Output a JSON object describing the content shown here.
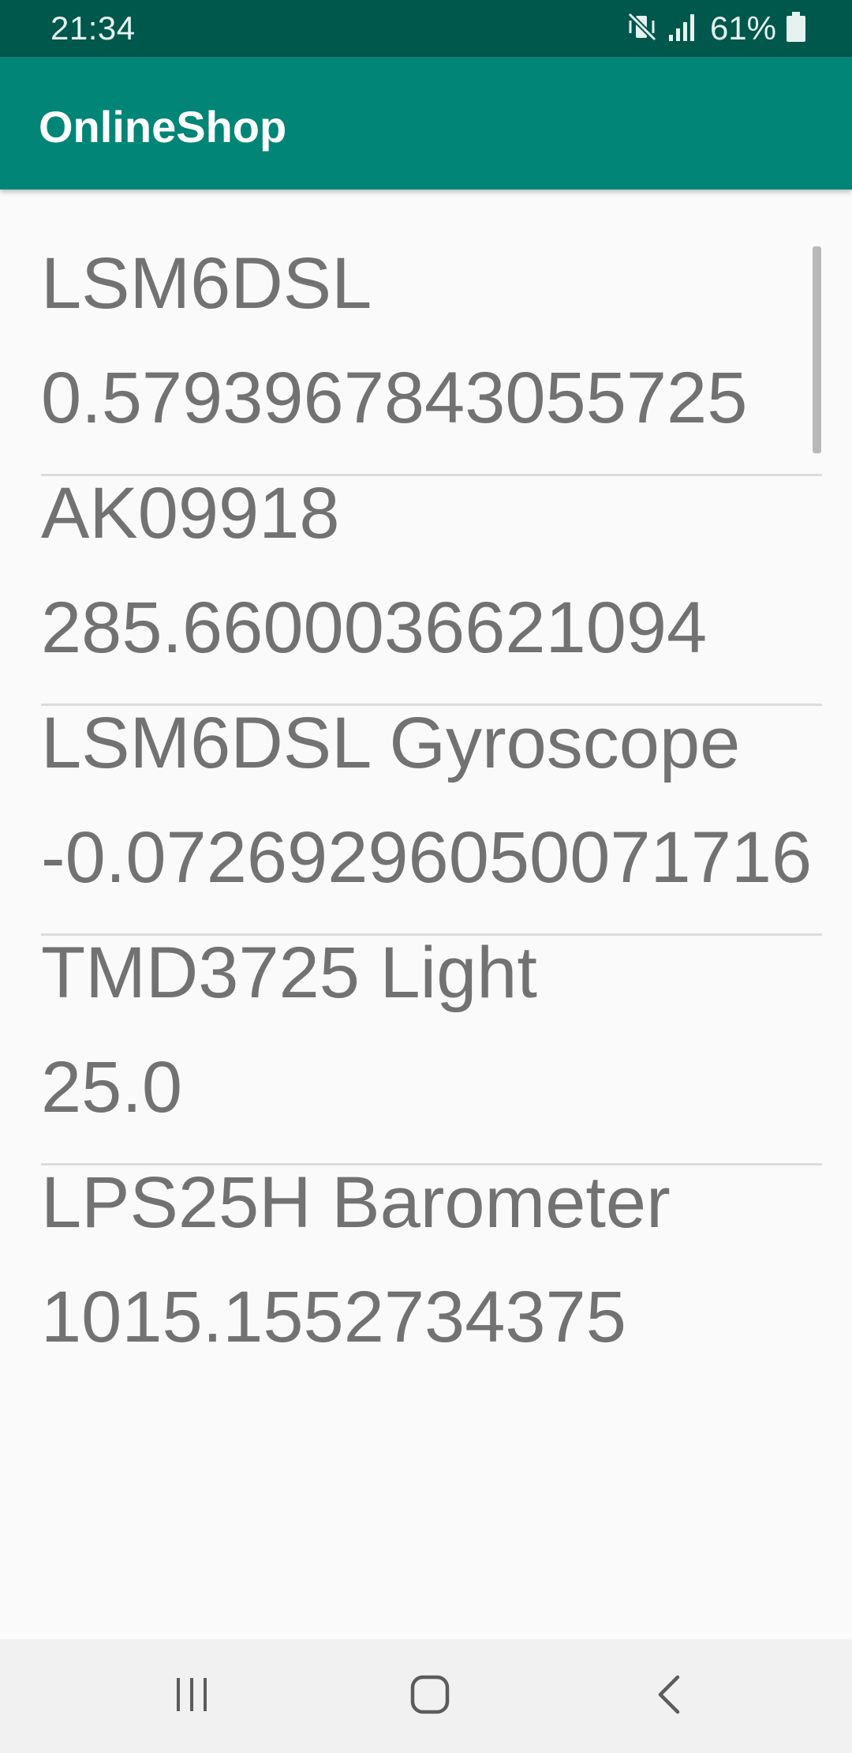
{
  "status_bar": {
    "time": "21:34",
    "battery_percent": "61%",
    "icons": [
      "mute-vibrate-icon",
      "signal-icon",
      "battery-icon"
    ]
  },
  "app_bar": {
    "title": "OnlineShop"
  },
  "sensors": [
    {
      "name": "LSM6DSL",
      "value": "0.5793967843055725"
    },
    {
      "name": "AK09918",
      "value": "285.6600036621094"
    },
    {
      "name": "LSM6DSL Gyroscope",
      "value": "-0.07269296050071716"
    },
    {
      "name": "TMD3725 Light",
      "value": "25.0"
    },
    {
      "name": "LPS25H Barometer",
      "value": "1015.1552734375"
    }
  ],
  "nav_bar": {
    "buttons": [
      "recent-apps-icon",
      "home-icon",
      "back-icon"
    ]
  },
  "colors": {
    "status_bar": "#00574b",
    "app_bar": "#008577",
    "text": "#727272",
    "background": "#fafafa"
  }
}
